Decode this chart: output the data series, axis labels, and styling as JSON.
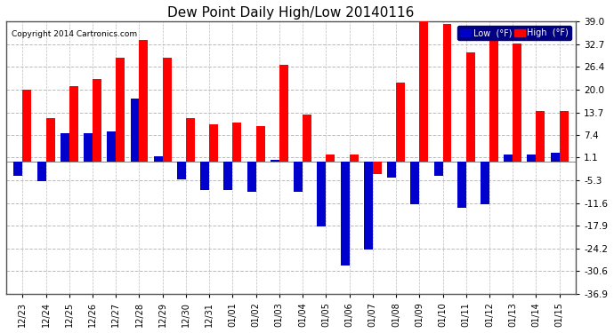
{
  "title": "Dew Point Daily High/Low 20140116",
  "copyright": "Copyright 2014 Cartronics.com",
  "dates": [
    "12/23",
    "12/24",
    "12/25",
    "12/26",
    "12/27",
    "12/28",
    "12/29",
    "12/30",
    "12/31",
    "01/01",
    "01/02",
    "01/03",
    "01/04",
    "01/05",
    "01/06",
    "01/07",
    "01/08",
    "01/09",
    "01/10",
    "01/11",
    "01/12",
    "01/13",
    "01/14",
    "01/15"
  ],
  "high": [
    20.0,
    12.0,
    21.0,
    23.0,
    29.0,
    34.0,
    29.0,
    12.0,
    10.5,
    11.0,
    10.0,
    27.0,
    13.0,
    2.0,
    2.0,
    -3.5,
    22.0,
    39.0,
    38.5,
    30.5,
    35.0,
    33.0,
    14.0,
    14.0
  ],
  "low": [
    -4.0,
    -5.5,
    8.0,
    8.0,
    8.5,
    17.5,
    1.5,
    -5.0,
    -8.0,
    -8.0,
    -8.5,
    0.5,
    -8.5,
    -18.0,
    -29.0,
    -24.5,
    -4.5,
    -12.0,
    -4.0,
    -13.0,
    -12.0,
    2.0,
    2.0,
    2.5
  ],
  "yticks": [
    39.0,
    32.7,
    26.4,
    20.0,
    13.7,
    7.4,
    1.1,
    -5.3,
    -11.6,
    -17.9,
    -24.2,
    -30.6,
    -36.9
  ],
  "high_color": "#ff0000",
  "low_color": "#0000cc",
  "bg_color": "#ffffff",
  "grid_color": "#bbbbbb",
  "title_fontsize": 11,
  "legend_high_label": "High  (°F)",
  "legend_low_label": "Low  (°F)",
  "ylim": [
    -36.9,
    39.0
  ],
  "bar_width": 0.38
}
